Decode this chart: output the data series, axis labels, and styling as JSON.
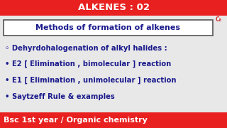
{
  "title": "ALKENES : 02",
  "title_bg": "#e82020",
  "title_color": "#ffffff",
  "box_text": "Methods of formation of alkenes",
  "box_bg": "#ffffff",
  "box_border": "#555555",
  "main_bg": "#e8e8e8",
  "bullet1": "◦ Dehyrdohalogenation of alkyl halides :",
  "bullet2": "• E2 [ Elimination , bimolecular ] reaction",
  "bullet3": "• E1 [ Elimination , unimolecular ] reaction",
  "bullet4": "• Saytzeff Rule & examples",
  "footer": "Bsc 1st year / Organic chemistry",
  "footer_bg": "#e82020",
  "footer_color": "#ffffff",
  "text_color": "#1a1a8c",
  "watermark": "C₈",
  "watermark_color": "#cc3333",
  "title_bar_height": 22,
  "footer_bar_height": 22
}
